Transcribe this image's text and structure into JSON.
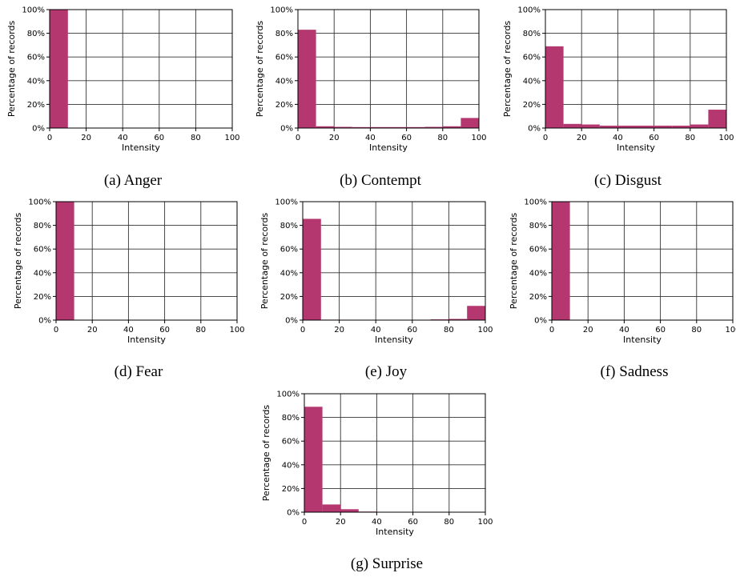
{
  "figure": {
    "bar_color": "#b5376f",
    "y_axis_label": "Percentage of records",
    "x_axis_label": "Intensity",
    "y_tick_labels": [
      "0%",
      "20%",
      "40%",
      "60%",
      "80%",
      "100%"
    ],
    "x_tick_labels": [
      "0",
      "20",
      "40",
      "60",
      "80",
      "100"
    ]
  },
  "chart_data": [
    {
      "type": "bar",
      "caption": "(a) Anger",
      "xlabel": "Intensity",
      "ylabel": "Percentage of records",
      "xlim": [
        0,
        100
      ],
      "ylim": [
        0,
        100
      ],
      "bin_width": 10,
      "bin_starts": [
        0,
        10,
        20,
        30,
        40,
        50,
        60,
        70,
        80,
        90
      ],
      "values": [
        100,
        0,
        0,
        0,
        0,
        0,
        0,
        0,
        0,
        0
      ],
      "grid": true
    },
    {
      "type": "bar",
      "caption": "(b) Contempt",
      "xlabel": "Intensity",
      "ylabel": "Percentage of records",
      "xlim": [
        0,
        100
      ],
      "ylim": [
        0,
        100
      ],
      "bin_width": 10,
      "bin_starts": [
        0,
        10,
        20,
        30,
        40,
        50,
        60,
        70,
        80,
        90
      ],
      "values": [
        83,
        1.5,
        1,
        0.8,
        0.8,
        0.8,
        0.8,
        1,
        1.5,
        8.5
      ],
      "grid": true
    },
    {
      "type": "bar",
      "caption": "(c) Disgust",
      "xlabel": "Intensity",
      "ylabel": "Percentage of records",
      "xlim": [
        0,
        100
      ],
      "ylim": [
        0,
        100
      ],
      "bin_width": 10,
      "bin_starts": [
        0,
        10,
        20,
        30,
        40,
        50,
        60,
        70,
        80,
        90
      ],
      "values": [
        69,
        3.5,
        3,
        2,
        2,
        2,
        2,
        2,
        3,
        15.5
      ],
      "grid": true
    },
    {
      "type": "bar",
      "caption": "(d) Fear",
      "xlabel": "Intensity",
      "ylabel": "Percentage of records",
      "xlim": [
        0,
        100
      ],
      "ylim": [
        0,
        100
      ],
      "bin_width": 10,
      "bin_starts": [
        0,
        10,
        20,
        30,
        40,
        50,
        60,
        70,
        80,
        90
      ],
      "values": [
        100,
        0,
        0,
        0,
        0,
        0,
        0,
        0,
        0,
        0
      ],
      "grid": true
    },
    {
      "type": "bar",
      "caption": "(e) Joy",
      "xlabel": "Intensity",
      "ylabel": "Percentage of records",
      "xlim": [
        0,
        100
      ],
      "ylim": [
        0,
        100
      ],
      "bin_width": 10,
      "bin_starts": [
        0,
        10,
        20,
        30,
        40,
        50,
        60,
        70,
        80,
        90
      ],
      "values": [
        85.5,
        0.4,
        0.2,
        0.2,
        0.2,
        0.2,
        0.3,
        0.6,
        1,
        12
      ],
      "grid": true
    },
    {
      "type": "bar",
      "caption": "(f) Sadness",
      "xlabel": "Intensity",
      "ylabel": "Percentage of records",
      "xlim": [
        0,
        100
      ],
      "ylim": [
        0,
        100
      ],
      "bin_width": 10,
      "bin_starts": [
        0,
        10,
        20,
        30,
        40,
        50,
        60,
        70,
        80,
        90
      ],
      "values": [
        100,
        0,
        0,
        0,
        0,
        0,
        0,
        0,
        0,
        0
      ],
      "grid": true
    },
    {
      "type": "bar",
      "caption": "(g) Surprise",
      "xlabel": "Intensity",
      "ylabel": "Percentage of records",
      "xlim": [
        0,
        100
      ],
      "ylim": [
        0,
        100
      ],
      "bin_width": 10,
      "bin_starts": [
        0,
        10,
        20,
        30,
        40,
        50,
        60,
        70,
        80,
        90
      ],
      "values": [
        89,
        6.5,
        2.5,
        0.5,
        0.3,
        0.2,
        0.2,
        0.2,
        0.2,
        0.2
      ],
      "grid": true
    }
  ]
}
